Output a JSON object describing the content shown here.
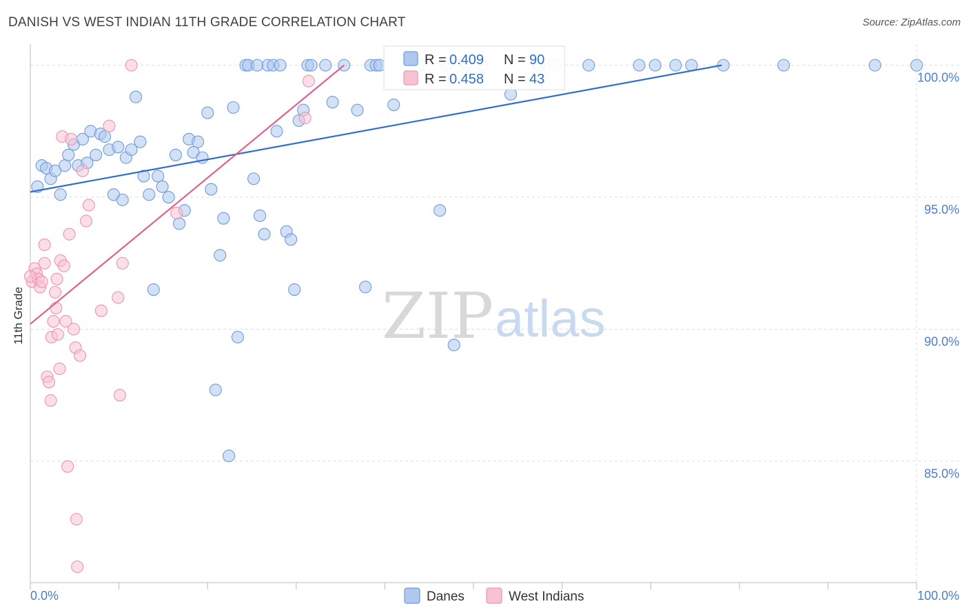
{
  "header": {
    "title": "DANISH VS WEST INDIAN 11TH GRADE CORRELATION CHART",
    "source": "Source: ZipAtlas.com"
  },
  "watermark": {
    "zip": "ZIP",
    "atlas": "atlas"
  },
  "legend": {
    "r_label": "R = ",
    "n_label": "N = ",
    "rows": [
      {
        "r": "0.409",
        "n": "90",
        "color": "#8fb4e6"
      },
      {
        "r": "0.458",
        "n": "43",
        "color": "#f3a6bf"
      }
    ]
  },
  "bottom_legend": [
    "Danes",
    "West Indians"
  ],
  "colors": {
    "danes_fill": "#aec8ee",
    "danes_stroke": "#6f9bd8",
    "danes_line": "#2f6fca",
    "wi_fill": "#f7c3d3",
    "wi_stroke": "#ee93b1",
    "wi_line": "#e0608b",
    "grid": "#dddddd",
    "tick_label": "#4a7fc9"
  },
  "chart_data": {
    "type": "scatter",
    "title": "DANISH VS WEST INDIAN 11TH GRADE CORRELATION CHART",
    "xlabel": "",
    "ylabel": "11th Grade",
    "xlim": [
      0,
      100
    ],
    "ylim": [
      80.4,
      100.8
    ],
    "x_tick_labels": [
      "0.0%",
      "100.0%"
    ],
    "y_ticks": [
      85,
      90,
      95,
      100
    ],
    "y_tick_labels": [
      "85.0%",
      "90.0%",
      "95.0%",
      "100.0%"
    ],
    "grid": true,
    "legend_position": "top-center",
    "series": [
      {
        "name": "Danes",
        "R": 0.409,
        "N": 90,
        "trend": [
          [
            0.0,
            95.2
          ],
          [
            78.0,
            100.0
          ]
        ],
        "points": [
          [
            0.8,
            95.4
          ],
          [
            1.3,
            96.2
          ],
          [
            1.8,
            96.1
          ],
          [
            2.3,
            95.7
          ],
          [
            2.8,
            96.0
          ],
          [
            3.4,
            95.1
          ],
          [
            3.9,
            96.2
          ],
          [
            4.3,
            96.6
          ],
          [
            4.9,
            97.0
          ],
          [
            5.4,
            96.2
          ],
          [
            5.9,
            97.2
          ],
          [
            6.4,
            96.3
          ],
          [
            6.8,
            97.5
          ],
          [
            7.4,
            96.6
          ],
          [
            7.9,
            97.4
          ],
          [
            8.4,
            97.3
          ],
          [
            8.9,
            96.8
          ],
          [
            9.4,
            95.1
          ],
          [
            9.9,
            96.9
          ],
          [
            10.4,
            94.9
          ],
          [
            10.8,
            96.5
          ],
          [
            11.4,
            96.8
          ],
          [
            11.9,
            98.8
          ],
          [
            12.4,
            97.1
          ],
          [
            12.8,
            95.8
          ],
          [
            13.4,
            95.1
          ],
          [
            13.9,
            91.5
          ],
          [
            14.4,
            95.8
          ],
          [
            14.9,
            95.4
          ],
          [
            15.6,
            95.0
          ],
          [
            16.4,
            96.6
          ],
          [
            16.8,
            94.0
          ],
          [
            17.4,
            94.5
          ],
          [
            17.9,
            97.2
          ],
          [
            18.4,
            96.7
          ],
          [
            18.9,
            97.1
          ],
          [
            19.4,
            96.5
          ],
          [
            20.0,
            98.2
          ],
          [
            20.4,
            95.3
          ],
          [
            20.9,
            87.7
          ],
          [
            21.4,
            92.8
          ],
          [
            21.8,
            94.2
          ],
          [
            22.4,
            85.2
          ],
          [
            22.9,
            98.4
          ],
          [
            23.4,
            89.7
          ],
          [
            24.3,
            100.0
          ],
          [
            24.6,
            100.0
          ],
          [
            25.2,
            95.7
          ],
          [
            25.6,
            100.0
          ],
          [
            25.9,
            94.3
          ],
          [
            26.4,
            93.6
          ],
          [
            26.8,
            100.0
          ],
          [
            27.4,
            100.0
          ],
          [
            27.8,
            97.5
          ],
          [
            28.2,
            100.0
          ],
          [
            28.9,
            93.7
          ],
          [
            29.4,
            93.4
          ],
          [
            29.8,
            91.5
          ],
          [
            30.3,
            97.9
          ],
          [
            30.8,
            98.3
          ],
          [
            31.3,
            100.0
          ],
          [
            31.7,
            100.0
          ],
          [
            33.3,
            100.0
          ],
          [
            34.1,
            98.6
          ],
          [
            35.4,
            100.0
          ],
          [
            36.9,
            98.3
          ],
          [
            37.8,
            91.6
          ],
          [
            38.4,
            100.0
          ],
          [
            39.0,
            100.0
          ],
          [
            39.4,
            100.0
          ],
          [
            41.0,
            98.5
          ],
          [
            42.5,
            100.0
          ],
          [
            44.0,
            100.0
          ],
          [
            46.2,
            94.5
          ],
          [
            47.0,
            100.0
          ],
          [
            47.8,
            89.4
          ],
          [
            49.2,
            100.0
          ],
          [
            51.0,
            100.0
          ],
          [
            54.2,
            98.9
          ],
          [
            57.4,
            100.0
          ],
          [
            59.2,
            100.0
          ],
          [
            63.0,
            100.0
          ],
          [
            68.7,
            100.0
          ],
          [
            70.5,
            100.0
          ],
          [
            72.8,
            100.0
          ],
          [
            74.6,
            100.0
          ],
          [
            78.2,
            100.0
          ],
          [
            85.0,
            100.0
          ],
          [
            95.3,
            100.0
          ],
          [
            100.0,
            100.0
          ]
        ]
      },
      {
        "name": "West Indians",
        "R": 0.458,
        "N": 43,
        "trend": [
          [
            0.0,
            90.2
          ],
          [
            35.4,
            100.0
          ]
        ],
        "points": [
          [
            0.2,
            91.8
          ],
          [
            0.5,
            92.3
          ],
          [
            0.7,
            92.1
          ],
          [
            0.9,
            91.9
          ],
          [
            1.1,
            91.6
          ],
          [
            1.3,
            91.8
          ],
          [
            1.6,
            93.2
          ],
          [
            1.6,
            92.5
          ],
          [
            1.9,
            88.2
          ],
          [
            2.1,
            88.0
          ],
          [
            2.3,
            87.3
          ],
          [
            2.4,
            89.7
          ],
          [
            2.6,
            90.3
          ],
          [
            2.8,
            91.4
          ],
          [
            2.9,
            90.8
          ],
          [
            3.0,
            91.9
          ],
          [
            3.1,
            89.8
          ],
          [
            3.3,
            88.5
          ],
          [
            3.4,
            92.6
          ],
          [
            3.6,
            97.3
          ],
          [
            3.8,
            92.4
          ],
          [
            4.0,
            90.3
          ],
          [
            4.2,
            84.8
          ],
          [
            4.4,
            93.6
          ],
          [
            4.6,
            97.2
          ],
          [
            4.9,
            90.0
          ],
          [
            5.1,
            89.3
          ],
          [
            5.2,
            82.8
          ],
          [
            5.3,
            81.0
          ],
          [
            5.6,
            89.0
          ],
          [
            5.9,
            96.0
          ],
          [
            6.3,
            94.1
          ],
          [
            6.6,
            94.7
          ],
          [
            8.0,
            90.7
          ],
          [
            8.9,
            97.7
          ],
          [
            9.9,
            91.2
          ],
          [
            10.1,
            87.5
          ],
          [
            10.4,
            92.5
          ],
          [
            11.4,
            100.0
          ],
          [
            16.5,
            94.4
          ],
          [
            31.0,
            98.0
          ],
          [
            31.4,
            99.4
          ],
          [
            0.0,
            92.0
          ]
        ]
      }
    ]
  }
}
